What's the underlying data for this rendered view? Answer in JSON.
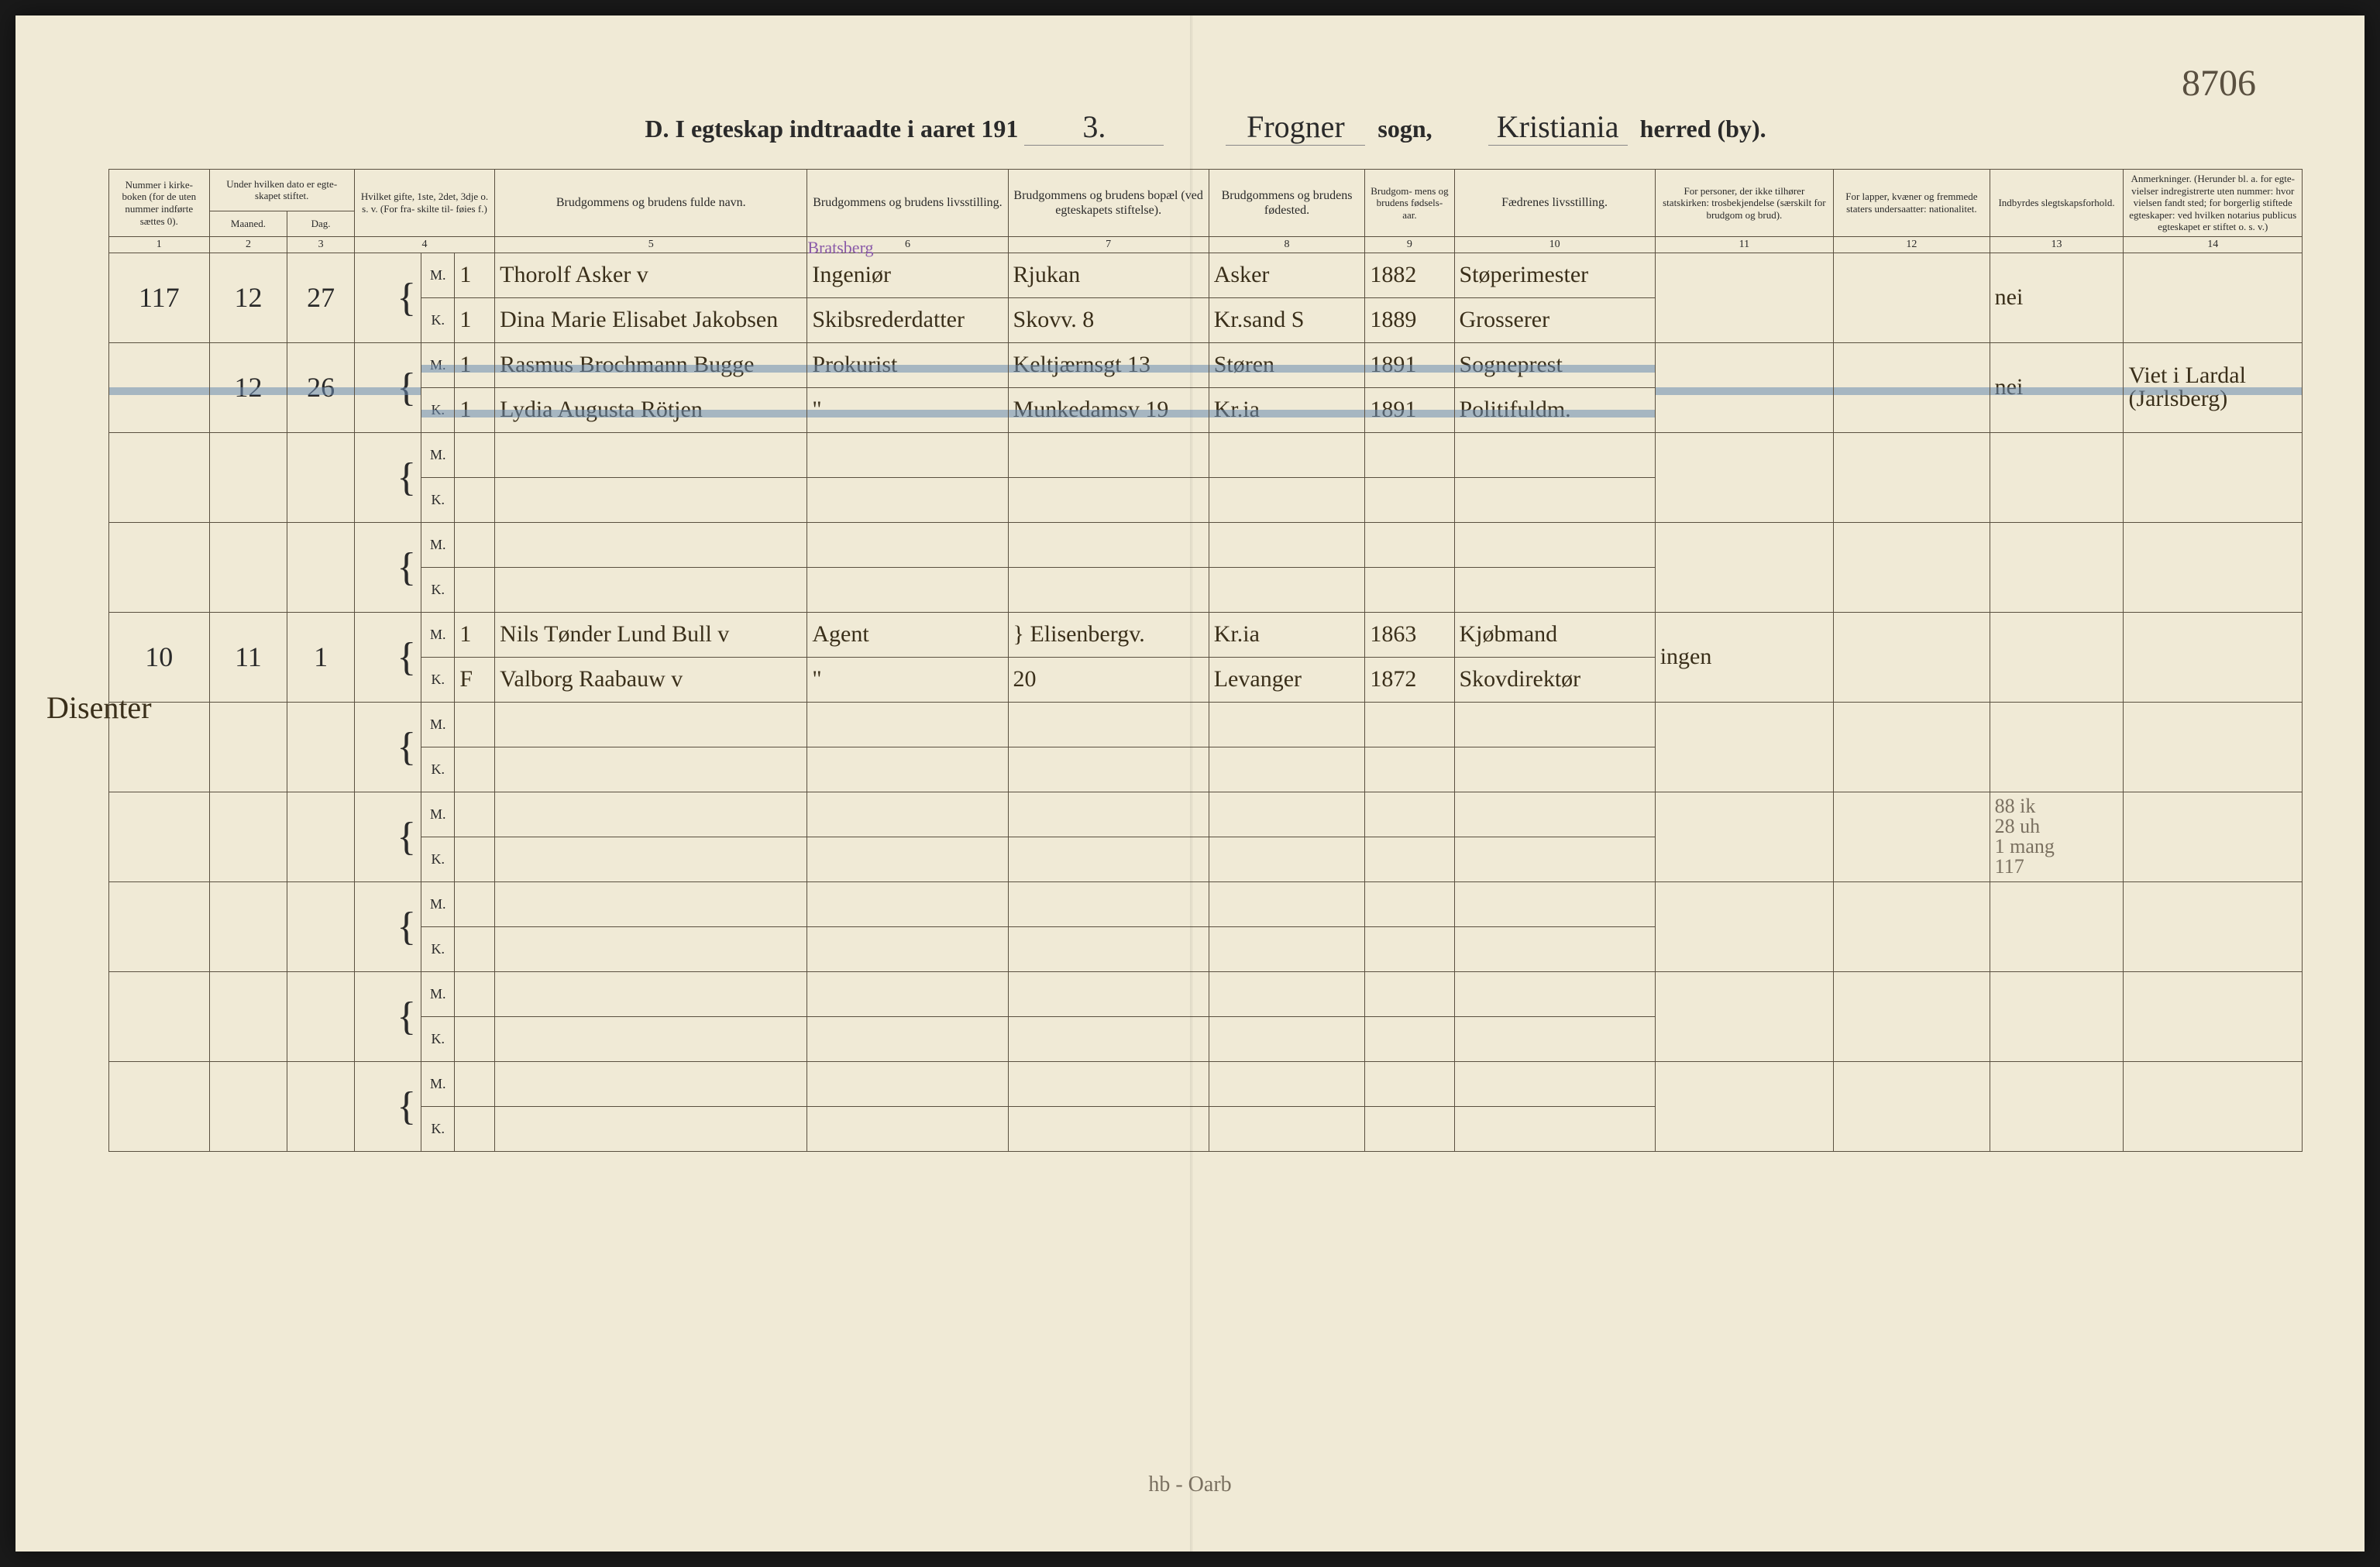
{
  "meta": {
    "page_number": "8706",
    "foot_note": "hb - Oarb"
  },
  "title": {
    "prefix": "D.  I egteskap indtraadte i aaret 191",
    "year_script": "3.",
    "sogn_script": "Frogner",
    "sogn_label": "sogn,",
    "herred_script": "Kristiania",
    "herred_label": "herred (by)."
  },
  "columns": {
    "c1": "Nummer i kirke- boken (for de uten nummer indførte sættes 0).",
    "c2a": "Under hvilken dato er egte- skapet stiftet.",
    "c2_m": "Maaned.",
    "c2_d": "Dag.",
    "c3": "Hvilket gifte, 1ste, 2det, 3dje o. s. v. (For fra- skilte til- føies f.)",
    "c4": "Brudgommens og brudens fulde navn.",
    "c5": "Brudgommens og brudens livsstilling.",
    "c6": "Brudgommens og brudens bopæl (ved egteskapets stiftelse).",
    "c7": "Brudgommens og brudens fødested.",
    "c8": "Brudgom- mens og brudens fødsels- aar.",
    "c9": "Fædrenes livsstilling.",
    "c10": "For personer, der ikke tilhører statskirken: trosbekjendelse (særskilt for brudgom og brud).",
    "c11": "For lapper, kvæner og fremmede staters undersaatter: nationalitet.",
    "c12": "Indbyrdes slegtskapsforhold.",
    "c13": "Anmerkninger. (Herunder bl. a. for egte- vielser indregistrerte uten nummer: hvor vielsen fandt sted; for borgerlig stiftede egteskaper: ved hvilken notarius publicus egteskapet er stiftet o. s. v.)"
  },
  "colnums": [
    "1",
    "2",
    "3",
    "4",
    "5",
    "6",
    "7",
    "8",
    "9",
    "10",
    "11",
    "12",
    "13",
    "14"
  ],
  "section_label": "Disenter",
  "rows": [
    {
      "num": "117",
      "maaned": "12",
      "dag": "27",
      "m": {
        "gifte": "1",
        "navn": "Thorolf   Asker         v",
        "stilling": "Ingeniør",
        "stilling_note": "Bratsberg",
        "bopael": "Rjukan",
        "fodested": "Asker",
        "aar": "1882",
        "faedre": "Støperimester"
      },
      "k": {
        "gifte": "1",
        "navn": "Dina Marie Elisabet Jakobsen",
        "stilling": "Skibsrederdatter",
        "bopael": "Skovv. 8",
        "fodested": "Kr.sand S",
        "aar": "1889",
        "faedre": "Grosserer"
      },
      "c12": "nei"
    },
    {
      "num": "",
      "maaned": "12",
      "dag": "26",
      "struck": true,
      "m": {
        "gifte": "1",
        "navn": "Rasmus Brochmann Bugge",
        "stilling": "Prokurist",
        "bopael": "Keltjærnsgt 13",
        "fodested": "Støren",
        "aar": "1891",
        "faedre": "Sogneprest"
      },
      "k": {
        "gifte": "1",
        "navn": "Lydia Augusta Rötjen",
        "stilling": "\"",
        "bopael": "Munkedamsv 19",
        "fodested": "Kr.ia",
        "aar": "1891",
        "faedre": "Politifuldm."
      },
      "c12": "nei",
      "c13": "Viet i Lardal (Jarlsberg)"
    },
    {
      "empty": true
    },
    {
      "empty": true
    },
    {
      "num": "10",
      "maaned": "11",
      "dag": "1",
      "m": {
        "gifte": "1",
        "navn": "Nils Tønder Lund Bull   v",
        "stilling": "Agent",
        "bopael": "} Elisenbergv.",
        "fodested": "Kr.ia",
        "aar": "1863",
        "faedre": "Kjøbmand"
      },
      "k": {
        "gifte": "F",
        "navn": "Valborg   Raabauw        v",
        "stilling": "\"",
        "bopael": "20",
        "fodested": "Levanger",
        "aar": "1872",
        "faedre": "Skovdirektør"
      },
      "c10": "ingen"
    },
    {
      "empty": true
    },
    {
      "empty": true,
      "c12_notes": [
        "88 ik",
        "28 uh",
        "1 mang",
        "117"
      ]
    },
    {
      "empty": true
    },
    {
      "empty": true
    },
    {
      "empty": true
    }
  ],
  "colors": {
    "paper": "#f0ead6",
    "ink": "#3a2f1a",
    "print": "#2a2a2a",
    "rule": "#5a5040",
    "strike": "#6a8bb0",
    "purple": "#8a5aa8",
    "pencil": "#7a7060"
  }
}
